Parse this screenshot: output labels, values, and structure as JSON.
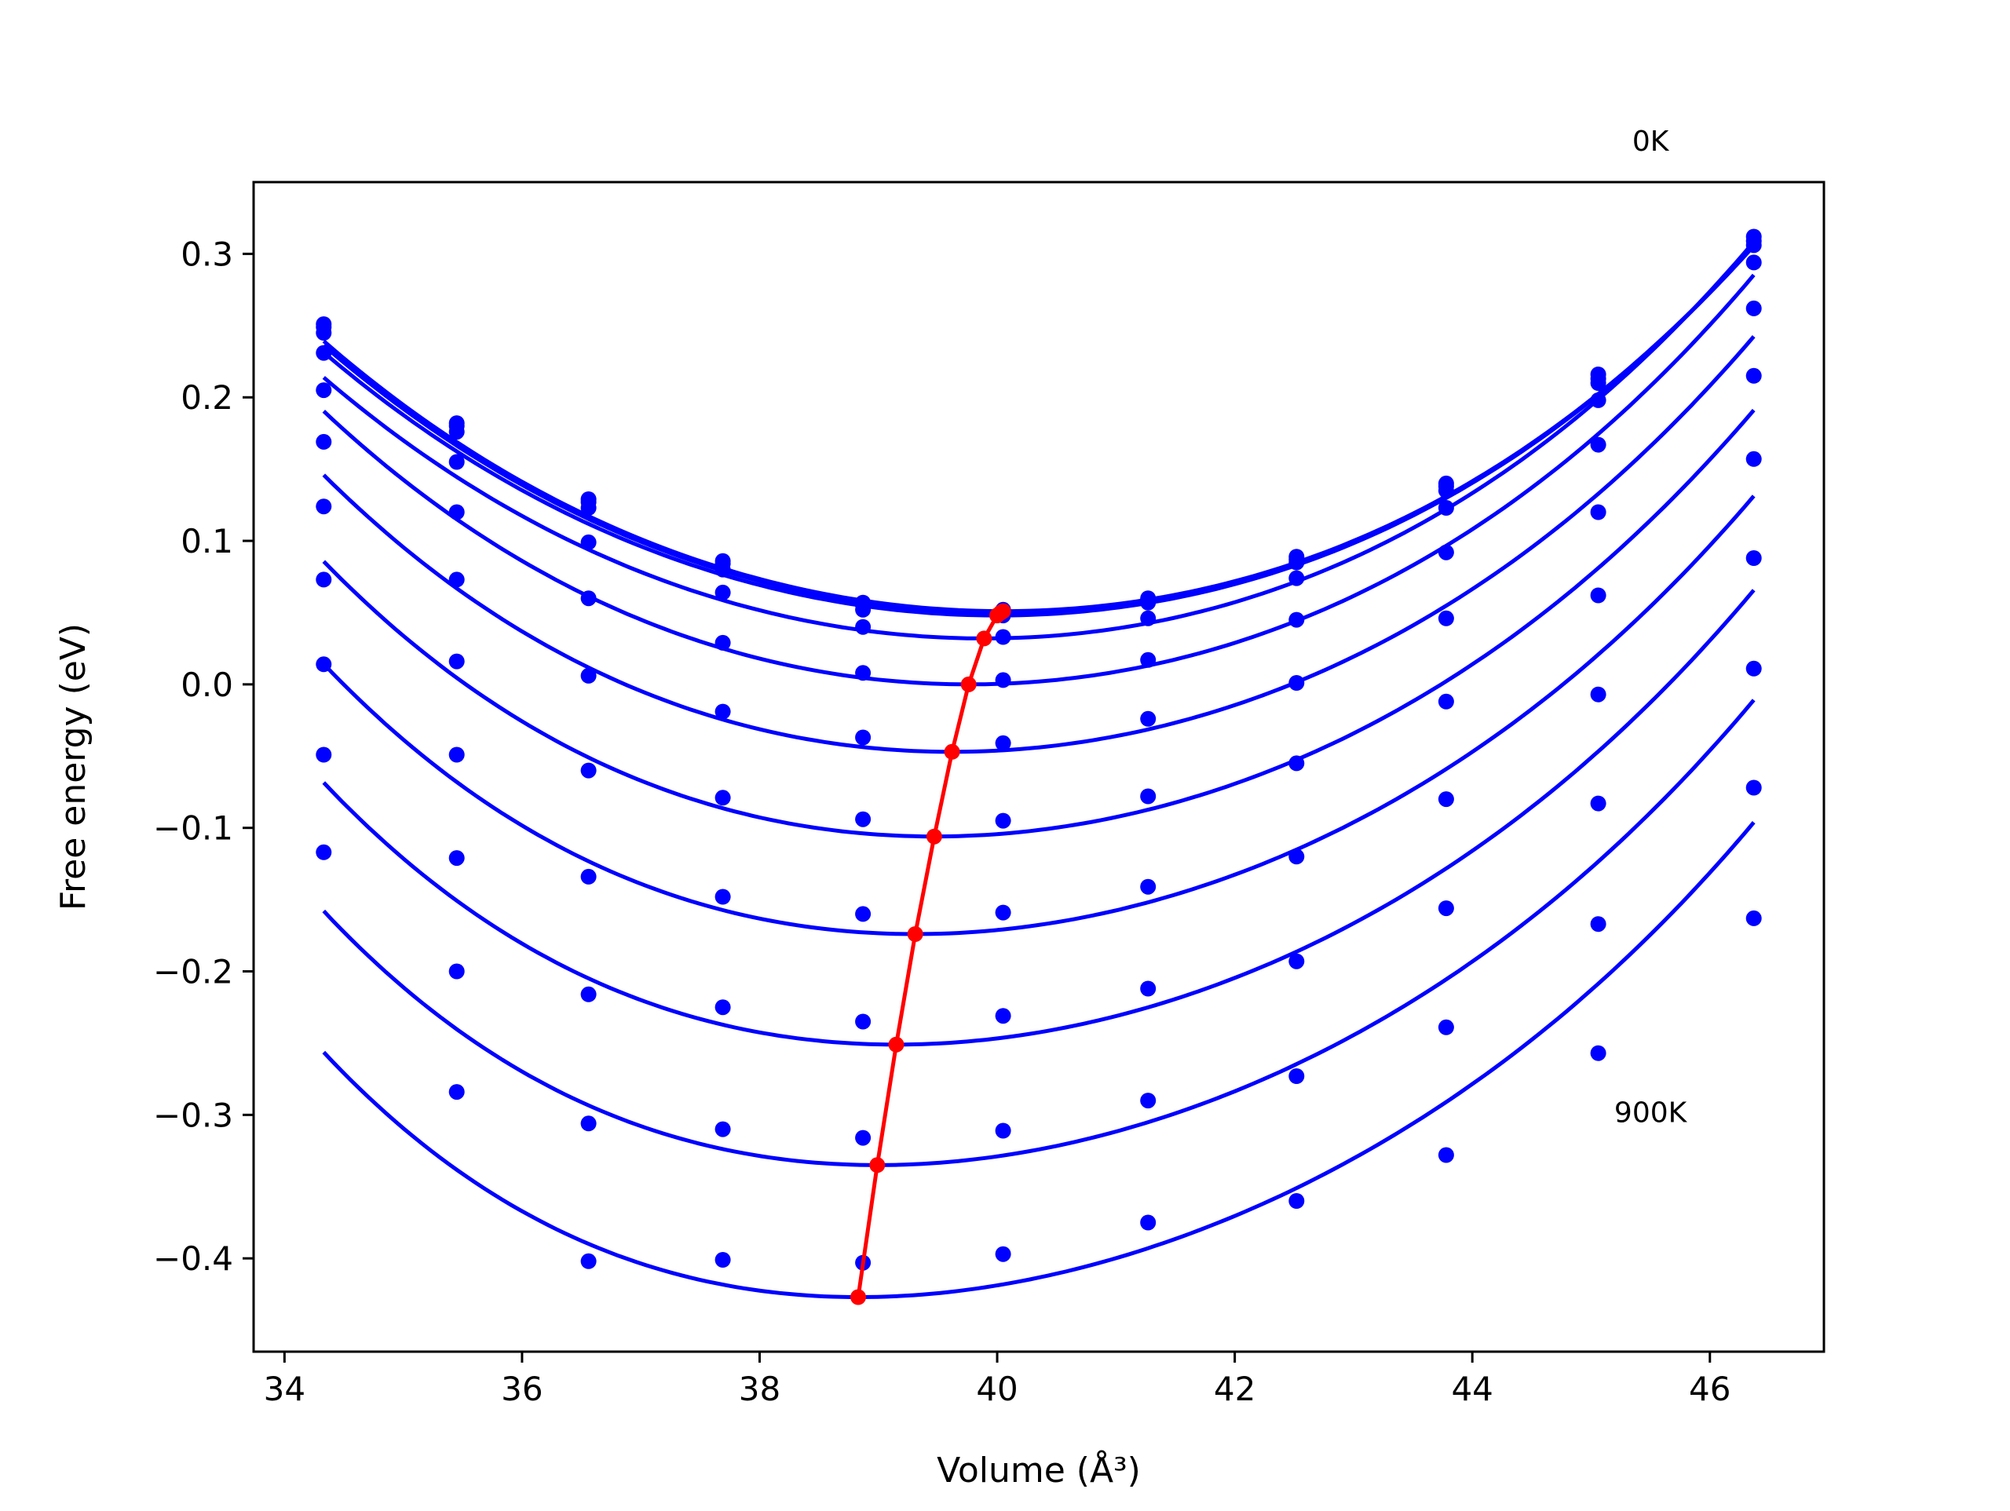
{
  "chart_data": {
    "type": "line",
    "title": "",
    "xlabel": "Volume (Å³)",
    "ylabel": "Free energy (eV)",
    "xlim": [
      33.74,
      46.96
    ],
    "ylim": [
      -0.465,
      0.35
    ],
    "grid": false,
    "xticks": [
      34,
      36,
      38,
      40,
      42,
      44,
      46
    ],
    "yticks": [
      -0.4,
      -0.3,
      -0.2,
      -0.1,
      0.0,
      0.1,
      0.2,
      0.3
    ],
    "annotations": [
      {
        "text": "0K",
        "x": 45.5,
        "y": 0.372
      },
      {
        "text": "900K",
        "x": 45.5,
        "y": -0.305
      }
    ],
    "colors": {
      "fit": "#0000ff",
      "points": "#0000ff",
      "minima": "#ff0000"
    },
    "volumes": [
      34.33,
      35.45,
      36.56,
      37.69,
      38.87,
      40.05,
      41.27,
      42.52,
      43.78,
      45.06,
      46.37
    ],
    "series": [
      {
        "values": [
          0.251,
          0.182,
          0.129,
          0.086,
          0.057,
          0.052,
          0.06,
          0.089,
          0.14,
          0.216,
          0.312
        ],
        "fit": {
          "v0": 40.05,
          "e0": 0.051,
          "a": 0.00534,
          "b": 4e-05,
          "c": 1.96e-05
        }
      },
      {
        "values": [
          0.249,
          0.18,
          0.127,
          0.084,
          0.055,
          0.05,
          0.059,
          0.087,
          0.138,
          0.213,
          0.309
        ],
        "fit": {
          "v0": 40.03,
          "e0": 0.05,
          "a": 0.00532,
          "b": 4e-05,
          "c": 1.96e-05
        }
      },
      {
        "values": [
          0.245,
          0.176,
          0.123,
          0.08,
          0.052,
          0.048,
          0.057,
          0.085,
          0.135,
          0.21,
          0.306
        ],
        "fit": {
          "v0": 40.0,
          "e0": 0.048,
          "a": 0.0053,
          "b": 4e-05,
          "c": 1.96e-05
        }
      },
      {
        "values": [
          0.231,
          0.155,
          0.099,
          0.064,
          0.04,
          0.033,
          0.046,
          0.074,
          0.123,
          0.198,
          0.294
        ],
        "fit": {
          "v0": 39.89,
          "e0": 0.032,
          "a": 0.0055,
          "b": 4e-05,
          "c": 1.96e-05
        }
      },
      {
        "values": [
          0.205,
          0.12,
          0.06,
          0.029,
          0.008,
          0.003,
          0.017,
          0.045,
          0.092,
          0.167,
          0.262
        ],
        "fit": {
          "v0": 39.76,
          "e0": 0.0,
          "a": 0.0057,
          "b": -2e-05,
          "c": 2.2e-05
        }
      },
      {
        "values": [
          0.169,
          0.073,
          0.006,
          -0.019,
          -0.037,
          -0.041,
          -0.024,
          0.001,
          0.046,
          0.12,
          0.215
        ],
        "fit": {
          "v0": 39.62,
          "e0": -0.047,
          "a": 0.0058,
          "b": -8e-05,
          "c": 2.4e-05
        }
      },
      {
        "values": [
          0.124,
          0.016,
          -0.06,
          -0.079,
          -0.094,
          -0.095,
          -0.078,
          -0.055,
          -0.012,
          0.062,
          0.157
        ],
        "fit": {
          "v0": 39.47,
          "e0": -0.106,
          "a": 0.0059,
          "b": -0.00013,
          "c": 2.6e-05
        }
      },
      {
        "values": [
          0.073,
          -0.049,
          -0.134,
          -0.148,
          -0.16,
          -0.159,
          -0.141,
          -0.12,
          -0.08,
          -0.007,
          0.088
        ],
        "fit": {
          "v0": 39.31,
          "e0": -0.174,
          "a": 0.006,
          "b": -0.00018,
          "c": 2.8e-05
        }
      },
      {
        "values": [
          0.014,
          -0.121,
          -0.216,
          -0.225,
          -0.235,
          -0.231,
          -0.212,
          -0.193,
          -0.156,
          -0.083,
          0.011
        ],
        "fit": {
          "v0": 39.15,
          "e0": -0.251,
          "a": 0.0061,
          "b": -0.00022,
          "c": 3e-05
        }
      },
      {
        "values": [
          -0.049,
          -0.2,
          -0.306,
          -0.31,
          -0.316,
          -0.311,
          -0.29,
          -0.273,
          -0.239,
          -0.167,
          -0.072
        ],
        "fit": {
          "v0": 38.99,
          "e0": -0.335,
          "a": 0.0062,
          "b": -0.00027,
          "c": 3.2e-05
        }
      },
      {
        "values": [
          -0.117,
          -0.284,
          -0.402,
          -0.401,
          -0.403,
          -0.397,
          -0.375,
          -0.36,
          -0.328,
          -0.257,
          -0.163
        ],
        "fit": {
          "v0": 38.83,
          "e0": -0.427,
          "a": 0.0063,
          "b": -0.00032,
          "c": 3.4e-05
        }
      }
    ],
    "minima": [
      {
        "x": 40.05,
        "y": 0.051
      },
      {
        "x": 40.03,
        "y": 0.05
      },
      {
        "x": 40.0,
        "y": 0.048
      },
      {
        "x": 39.89,
        "y": 0.032
      },
      {
        "x": 39.76,
        "y": 0.0
      },
      {
        "x": 39.62,
        "y": -0.047
      },
      {
        "x": 39.47,
        "y": -0.106
      },
      {
        "x": 39.31,
        "y": -0.174
      },
      {
        "x": 39.15,
        "y": -0.251
      },
      {
        "x": 38.99,
        "y": -0.335
      },
      {
        "x": 38.83,
        "y": -0.427
      }
    ]
  }
}
